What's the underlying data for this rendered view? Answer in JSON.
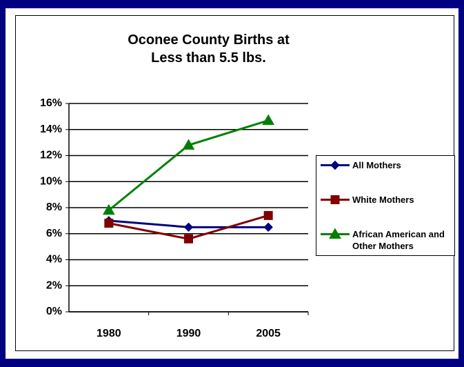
{
  "chart_data": {
    "type": "line",
    "title": "Oconee County Births at Less than 5.5 lbs.",
    "categories": [
      "1980",
      "1990",
      "2005"
    ],
    "series": [
      {
        "name": "All Mothers",
        "color": "#000080",
        "marker": "diamond",
        "values": [
          7.0,
          6.5,
          6.5
        ]
      },
      {
        "name": "White Mothers",
        "color": "#800000",
        "marker": "square",
        "values": [
          6.8,
          5.6,
          7.4
        ]
      },
      {
        "name": "African American and Other Mothers",
        "color": "#008000",
        "marker": "triangle",
        "values": [
          7.8,
          12.8,
          14.7
        ]
      }
    ],
    "ylim": [
      0,
      16
    ],
    "yticks": [
      {
        "value": 0,
        "label": "0%"
      },
      {
        "value": 2,
        "label": "2%"
      },
      {
        "value": 4,
        "label": "4%"
      },
      {
        "value": 6,
        "label": "6%"
      },
      {
        "value": 8,
        "label": "8%"
      },
      {
        "value": 10,
        "label": "10%"
      },
      {
        "value": 12,
        "label": "12%"
      },
      {
        "value": 14,
        "label": "14%"
      },
      {
        "value": 16,
        "label": "16%"
      }
    ],
    "grid": true,
    "legend": "right"
  }
}
